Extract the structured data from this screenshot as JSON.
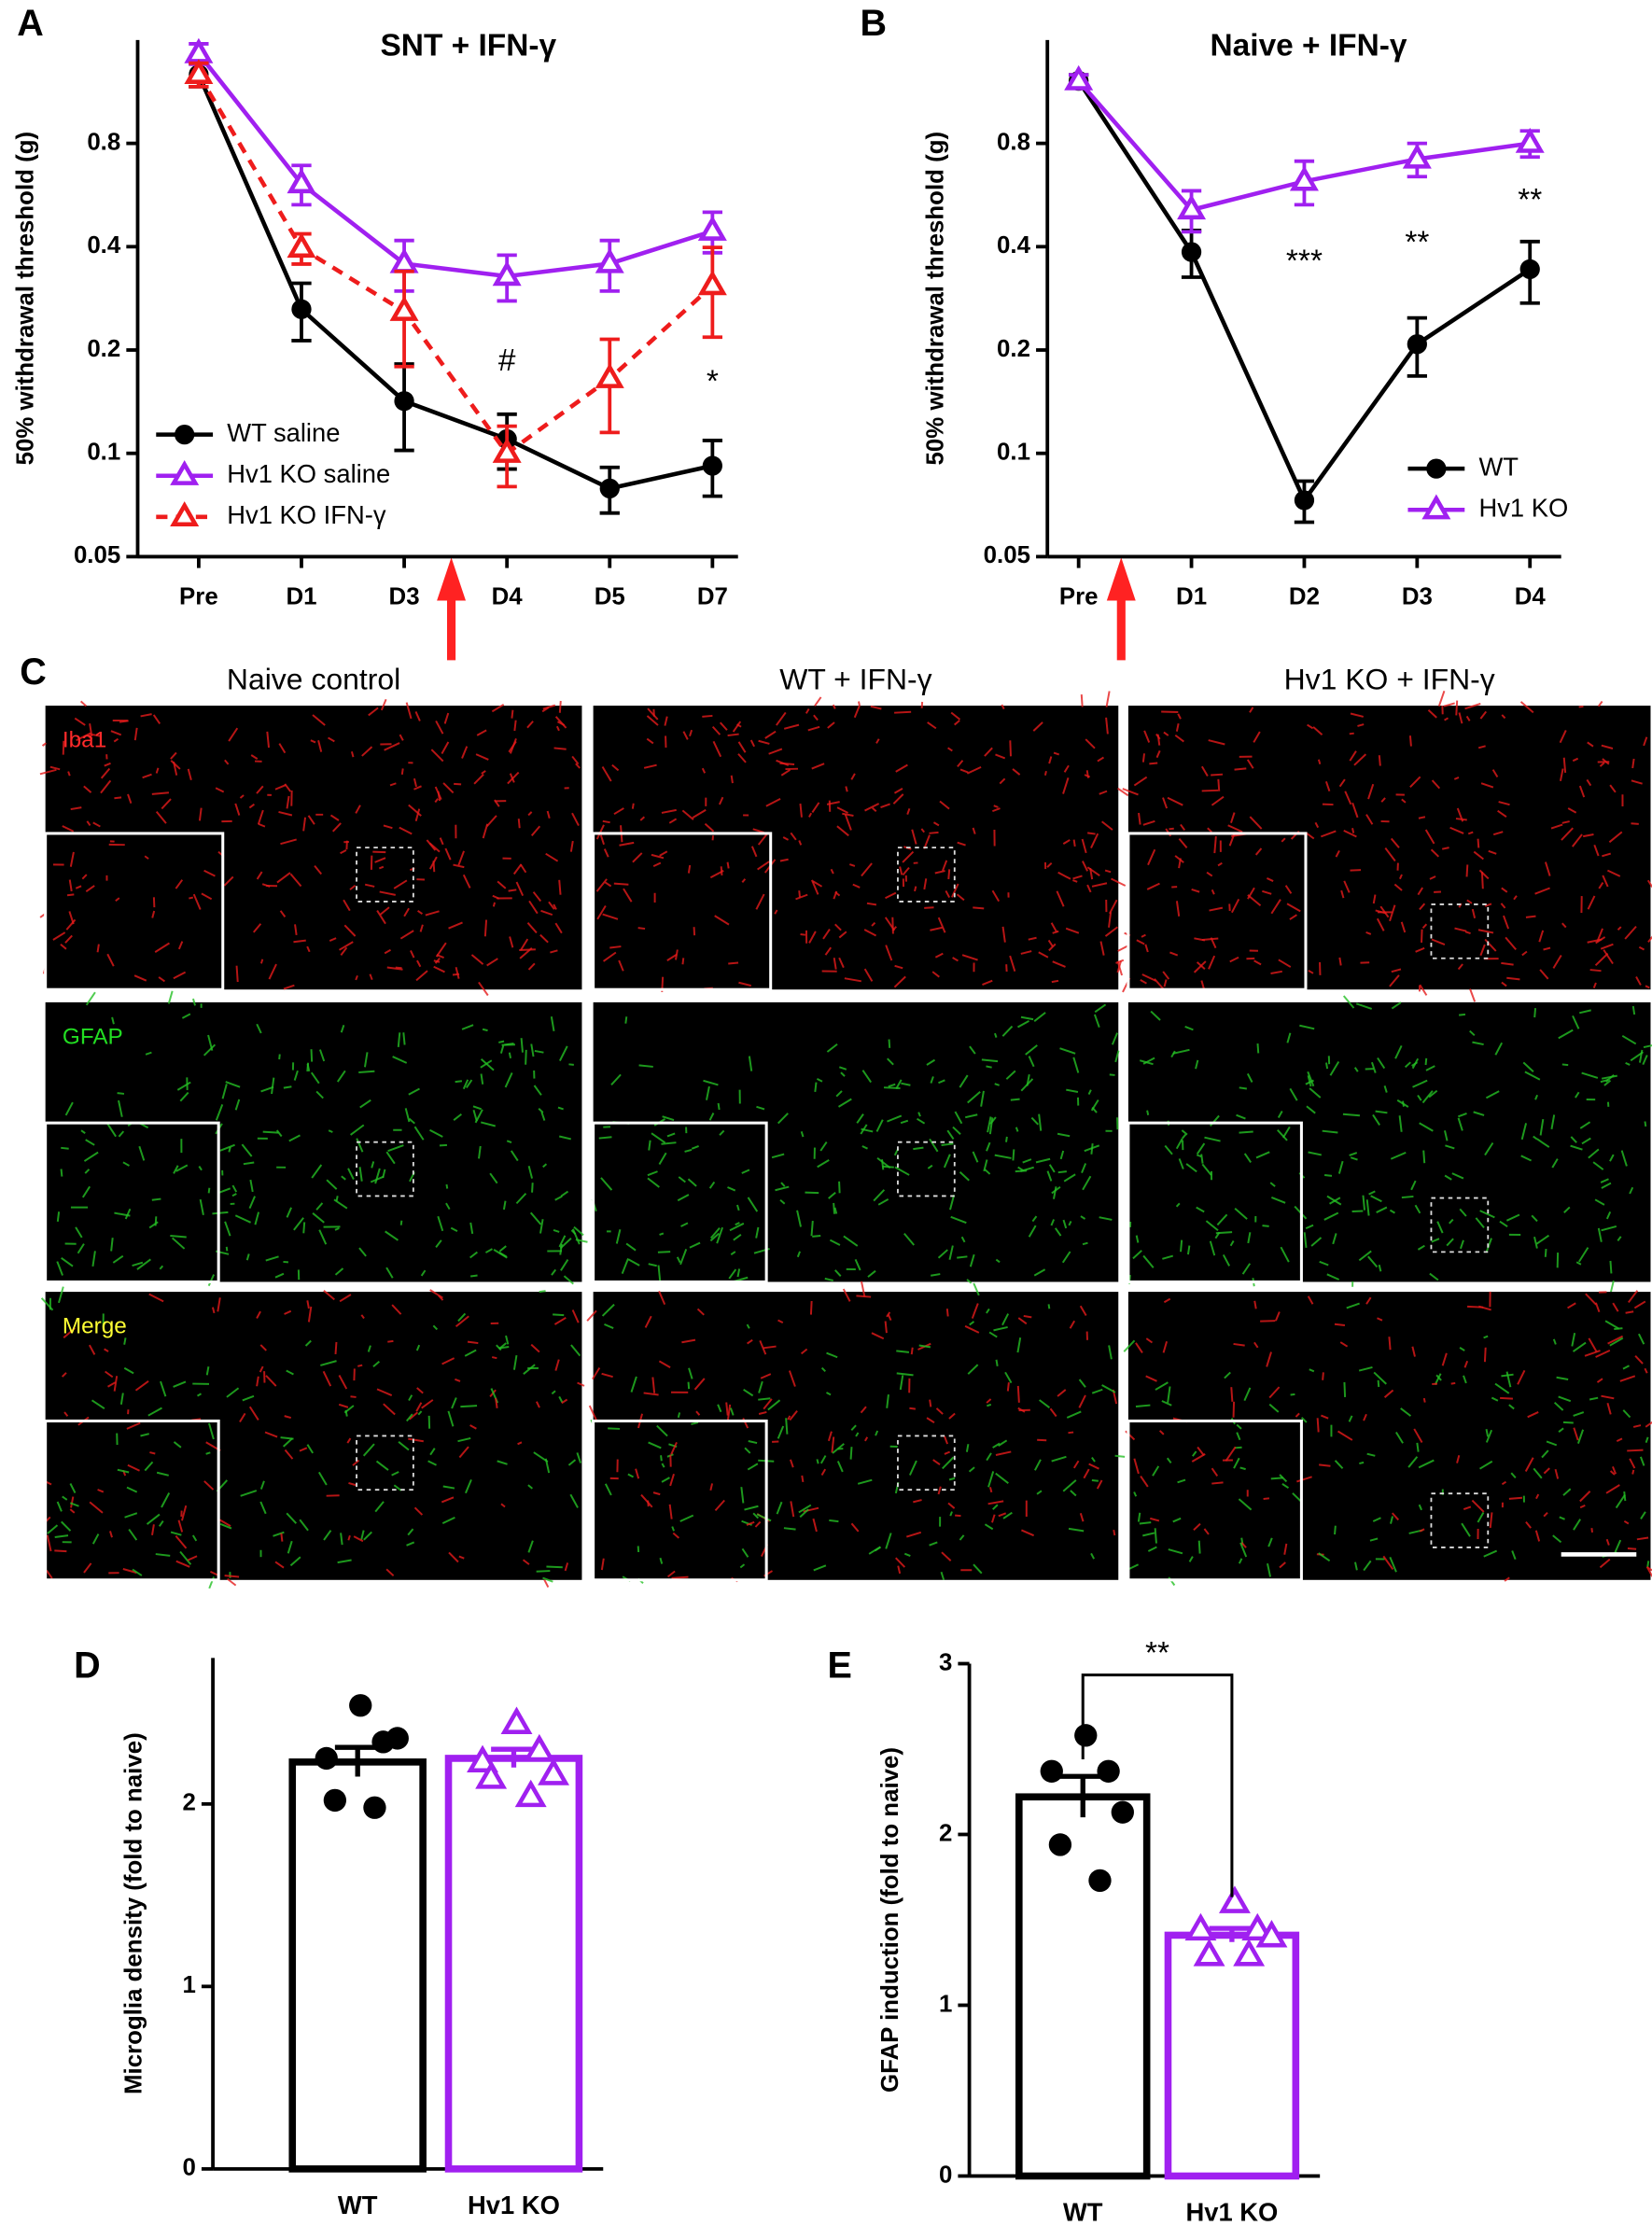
{
  "chart_data": [
    {
      "type": "line",
      "label": "A",
      "title": "SNT + IFN-γ",
      "y_label": "50% withdrawal threshold (g)",
      "log_y": true,
      "ylim": [
        0.05,
        1.6
      ],
      "yticks": [
        0.05,
        0.1,
        0.2,
        0.4,
        0.8
      ],
      "categories": [
        "Pre",
        "D1",
        "D3",
        "D4",
        "D5",
        "D7"
      ],
      "legend": "lower left",
      "series": [
        {
          "name": "WT saline",
          "color": "#000000",
          "marker": "circle",
          "dashed": false,
          "values": [
            1.27,
            0.263,
            0.142,
            0.11,
            0.079,
            0.092
          ],
          "errors": [
            0.1,
            0.05,
            0.04,
            0.02,
            0.012,
            0.017
          ]
        },
        {
          "name": "Hv1 KO saline",
          "color": "#a020f0",
          "marker": "triangle",
          "dashed": false,
          "values": [
            1.46,
            0.61,
            0.357,
            0.328,
            0.357,
            0.444
          ],
          "errors": [
            0.1,
            0.08,
            0.06,
            0.05,
            0.06,
            0.06
          ]
        },
        {
          "name": "Hv1 KO IFN-γ",
          "color": "#ee1c1c",
          "marker": "triangle",
          "dashed": true,
          "values": [
            1.27,
            0.396,
            0.259,
            0.1,
            0.165,
            0.308
          ],
          "errors": [
            0.1,
            0.04,
            0.08,
            0.02,
            0.05,
            0.09
          ]
        }
      ],
      "annotations": [
        {
          "text": "#",
          "x": "D4"
        },
        {
          "text": "*",
          "x": "D7"
        }
      ]
    },
    {
      "type": "line",
      "label": "B",
      "title": "Naive + IFN-γ",
      "y_label": "50% withdrawal threshold (g)",
      "log_y": true,
      "ylim": [
        0.05,
        1.6
      ],
      "yticks": [
        0.05,
        0.1,
        0.2,
        0.4,
        0.8
      ],
      "categories": [
        "Pre",
        "D1",
        "D2",
        "D3",
        "D4"
      ],
      "legend": "lower right",
      "series": [
        {
          "name": "WT",
          "color": "#000000",
          "marker": "circle",
          "dashed": false,
          "values": [
            1.217,
            0.386,
            0.073,
            0.208,
            0.344
          ],
          "errors": [
            0.05,
            0.06,
            0.01,
            0.04,
            0.07
          ]
        },
        {
          "name": "Hv1 KO",
          "color": "#a020f0",
          "marker": "triangle",
          "dashed": false,
          "values": [
            1.217,
            0.512,
            0.62,
            0.72,
            0.8
          ],
          "errors": [
            0.05,
            0.07,
            0.09,
            0.08,
            0.07
          ]
        }
      ],
      "annotations": [
        {
          "text": "***",
          "x": "D2"
        },
        {
          "text": "**",
          "x": "D3"
        },
        {
          "text": "**",
          "x": "D4"
        }
      ]
    },
    {
      "type": "bar",
      "label": "D",
      "y_label": "Microglia density (fold to naive)",
      "ylim": [
        0,
        2.8
      ],
      "yticks": [
        0,
        1,
        2
      ],
      "categories": [
        "WT",
        "Hv1 KO"
      ],
      "values": [
        2.23,
        2.25
      ],
      "errors": [
        0.08,
        0.05
      ],
      "colors": [
        "#000000",
        "#a020f0"
      ],
      "markers": [
        "circle",
        "triangle"
      ],
      "points": [
        [
          2.54,
          2.34,
          2.25,
          2.36,
          2.02,
          1.98
        ],
        [
          2.44,
          2.29,
          2.23,
          2.16,
          2.14,
          2.04
        ]
      ]
    },
    {
      "type": "bar",
      "label": "E",
      "y_label": "GFAP induction (fold to naive)",
      "ylim": [
        0,
        3
      ],
      "yticks": [
        0,
        1,
        2,
        3
      ],
      "categories": [
        "WT",
        "Hv1 KO"
      ],
      "values": [
        2.22,
        1.41
      ],
      "errors": [
        0.12,
        0.04
      ],
      "colors": [
        "#000000",
        "#a020f0"
      ],
      "markers": [
        "circle",
        "triangle"
      ],
      "points": [
        [
          2.58,
          2.37,
          2.37,
          2.13,
          1.94,
          1.73
        ],
        [
          1.6,
          1.44,
          1.44,
          1.4,
          1.29,
          1.29
        ]
      ],
      "annotations": [
        {
          "text": "**"
        }
      ]
    }
  ],
  "micrographs": {
    "label": "C",
    "columns": [
      "Naive control",
      "WT + IFN-γ",
      "Hv1 KO + IFN-γ"
    ],
    "rows": [
      {
        "name": "Iba1",
        "color": "#ff2a2a"
      },
      {
        "name": "GFAP",
        "color": "#22dd22"
      },
      {
        "name": "Merge",
        "color": "#ffff33"
      }
    ]
  }
}
